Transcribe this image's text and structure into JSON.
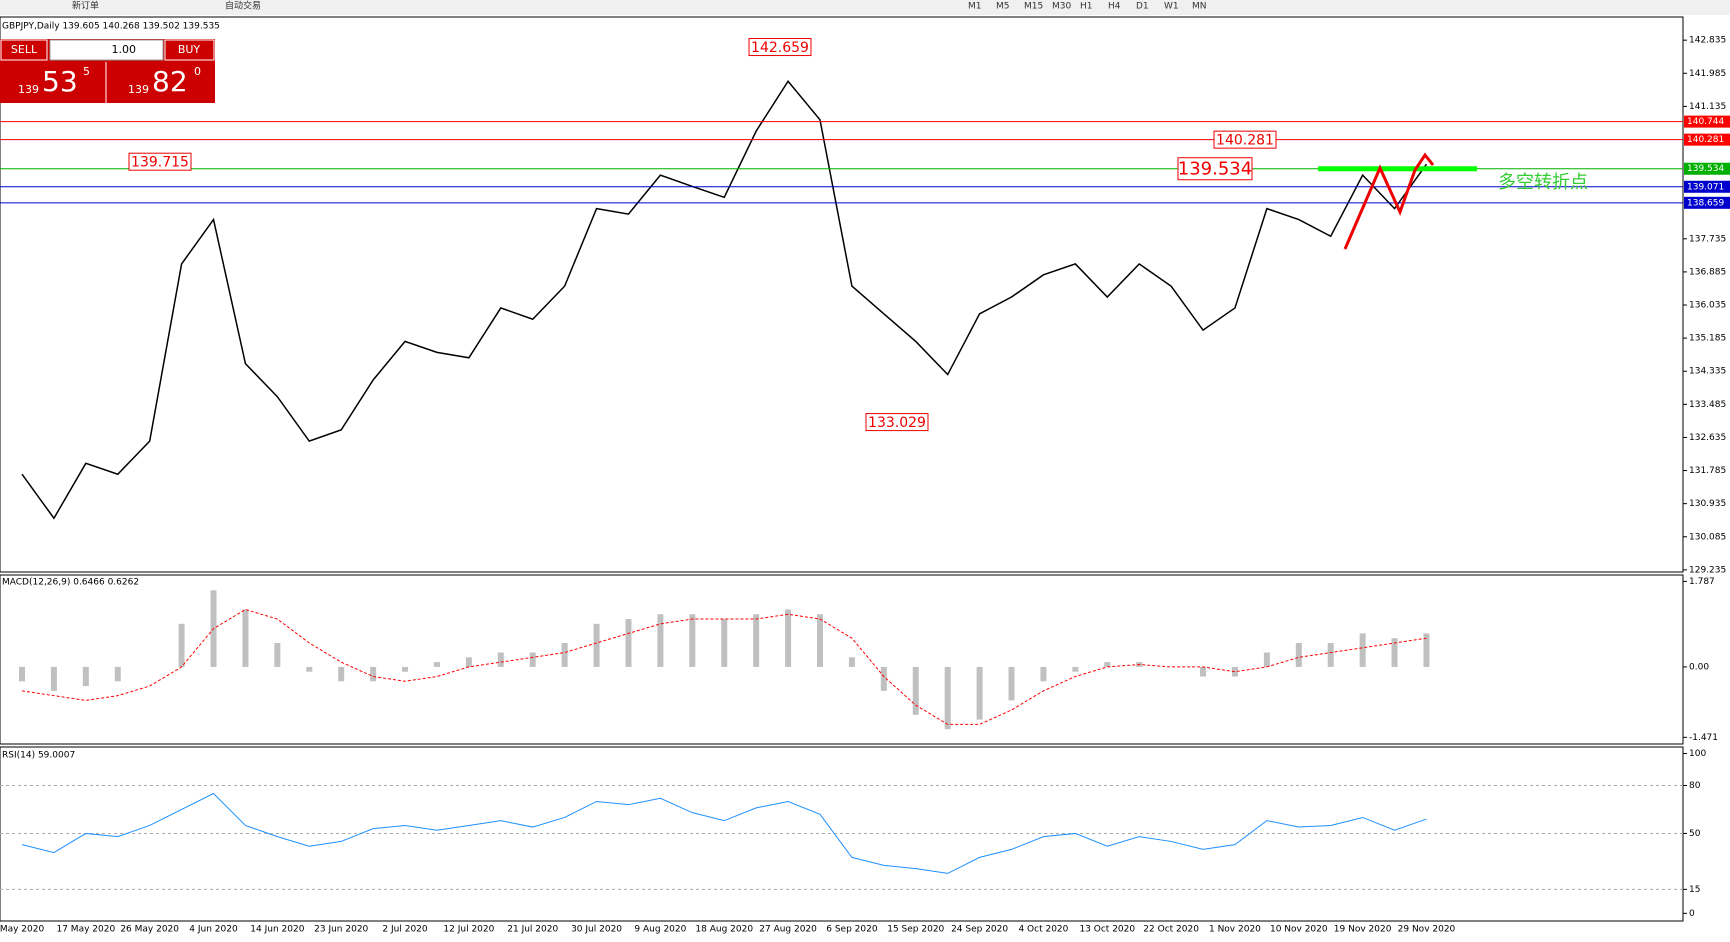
{
  "toolbar": {
    "new_order": "新订单",
    "auto_trading": "自动交易",
    "timeframes": [
      "M1",
      "M5",
      "M15",
      "M30",
      "H1",
      "H4",
      "D1",
      "W1",
      "MN"
    ]
  },
  "trade_panel": {
    "sell": "SELL",
    "buy": "BUY",
    "lots": "1.00",
    "sell_big": "139",
    "sell_main": "53",
    "sell_sup": "5",
    "buy_big": "139",
    "buy_main": "82",
    "buy_sup": "0"
  },
  "chart_data": [
    {
      "type": "line",
      "title": "GBPJPY,Daily 139.605 140.268 139.502 139.535",
      "categories": [
        "May 2020",
        null,
        "17 May 2020",
        null,
        "26 May 2020",
        null,
        "4 Jun 2020",
        null,
        "14 Jun 2020",
        null,
        "23 Jun 2020",
        null,
        "2 Jul 2020",
        null,
        "12 Jul 2020",
        null,
        "21 Jul 2020",
        null,
        "30 Jul 2020",
        null,
        "9 Aug 2020",
        null,
        "18 Aug 2020",
        null,
        "27 Aug 2020",
        null,
        "6 Sep 2020",
        null,
        "15 Sep 2020",
        null,
        "24 Sep 2020",
        null,
        "4 Oct 2020",
        null,
        "13 Oct 2020",
        null,
        "22 Oct 2020",
        null,
        "1 Nov 2020",
        null,
        "10 Nov 2020",
        null,
        "19 Nov 2020",
        null,
        "29 Nov 2020"
      ],
      "series": [
        {
          "name": "GBPJPY",
          "color": "#000000",
          "values": [
            131.69,
            130.56,
            131.97,
            131.69,
            132.54,
            137.09,
            138.23,
            134.53,
            133.68,
            132.54,
            132.83,
            134.11,
            135.1,
            134.82,
            134.68,
            135.96,
            135.67,
            136.52,
            138.51,
            138.37,
            139.37,
            139.08,
            138.8,
            140.5,
            141.78,
            140.79,
            136.52,
            135.81,
            135.1,
            134.25,
            135.81,
            136.24,
            136.81,
            137.09,
            136.24,
            137.09,
            136.52,
            135.39,
            135.96,
            138.51,
            138.23,
            137.8,
            139.37,
            138.51,
            139.65
          ]
        }
      ],
      "ylim": [
        129.18,
        143.43
      ],
      "yticks": [
        142.835,
        141.985,
        141.135,
        137.735,
        136.885,
        136.035,
        135.185,
        134.335,
        133.485,
        132.635,
        131.785,
        130.935,
        130.085,
        129.235
      ],
      "levels": [
        {
          "value": 140.744,
          "color": "#ff0000"
        },
        {
          "value": 140.281,
          "color": "#ff0000"
        },
        {
          "value": 139.534,
          "color": "#00b000"
        },
        {
          "value": 139.071,
          "color": "#0000cc"
        },
        {
          "value": 138.659,
          "color": "#0000cc"
        }
      ],
      "annotations": [
        142.659,
        140.281,
        139.715,
        139.534,
        133.029
      ],
      "note": "多空转折点"
    },
    {
      "type": "macd",
      "title": "MACD(12,26,9) 0.6466 0.6262",
      "series": [
        {
          "name": "MACD",
          "color": "#c0c0c0",
          "values": [
            -0.3,
            -0.5,
            -0.4,
            -0.3,
            0,
            0.9,
            1.6,
            1.2,
            0.5,
            -0.1,
            -0.3,
            -0.3,
            -0.1,
            0.1,
            0.2,
            0.3,
            0.3,
            0.5,
            0.9,
            1.0,
            1.1,
            1.1,
            1.0,
            1.1,
            1.2,
            1.1,
            0.2,
            -0.5,
            -1.0,
            -1.3,
            -1.1,
            -0.7,
            -0.3,
            -0.1,
            0.1,
            0.1,
            0,
            -0.2,
            -0.2,
            0.3,
            0.5,
            0.5,
            0.7,
            0.6,
            0.7
          ]
        },
        {
          "name": "Signal",
          "color": "#ff0000",
          "values": [
            -0.5,
            -0.6,
            -0.7,
            -0.6,
            -0.4,
            0,
            0.8,
            1.2,
            1.0,
            0.5,
            0.1,
            -0.2,
            -0.3,
            -0.2,
            0,
            0.1,
            0.2,
            0.3,
            0.5,
            0.7,
            0.9,
            1.0,
            1.0,
            1.0,
            1.1,
            1.0,
            0.6,
            -0.2,
            -0.8,
            -1.2,
            -1.2,
            -0.9,
            -0.5,
            -0.2,
            0,
            0.05,
            0,
            0,
            -0.1,
            0,
            0.2,
            0.3,
            0.4,
            0.5,
            0.6
          ]
        }
      ],
      "ylim": [
        -1.61,
        1.92
      ],
      "yticks": [
        1.787,
        {
          "value": 0,
          "label": "0.00"
        },
        -1.471
      ]
    },
    {
      "type": "rsi",
      "title": "RSI(14) 59.0007",
      "series": [
        {
          "name": "RSI",
          "color": "#1e90ff",
          "values": [
            43,
            38,
            50,
            48,
            55,
            65,
            75,
            55,
            48,
            42,
            45,
            53,
            55,
            52,
            55,
            58,
            54,
            60,
            70,
            68,
            72,
            63,
            58,
            66,
            70,
            62,
            35,
            30,
            28,
            25,
            35,
            40,
            48,
            50,
            42,
            48,
            45,
            40,
            43,
            58,
            54,
            55,
            60,
            52,
            59
          ]
        }
      ],
      "ylim": [
        -4.8,
        104.1
      ],
      "yticks": [
        100,
        80,
        50,
        15,
        0
      ]
    }
  ]
}
